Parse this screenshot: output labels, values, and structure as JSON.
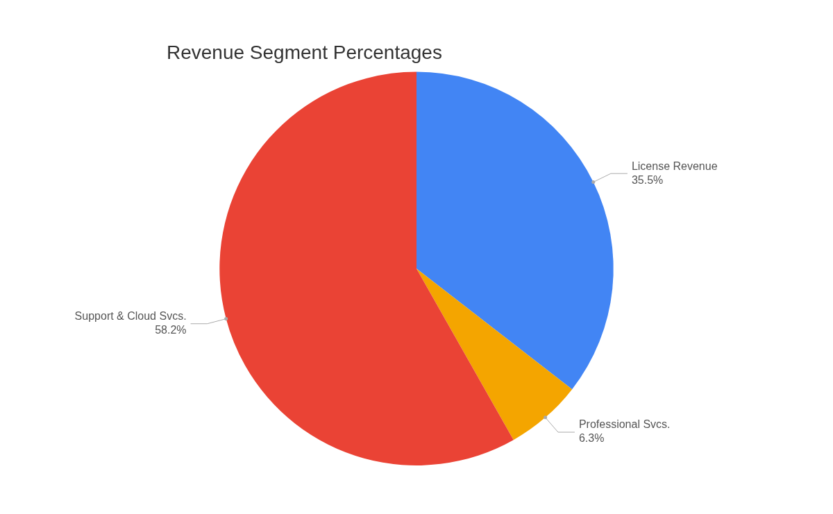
{
  "chart_data": {
    "type": "pie",
    "title": "Revenue Segment Percentages",
    "categories": [
      "License Revenue",
      "Professional Svcs.",
      "Support & Cloud Svcs."
    ],
    "values": [
      35.5,
      6.3,
      58.2
    ],
    "value_labels": [
      "35.5%",
      "6.3%",
      "58.2%"
    ],
    "colors": [
      "#4285F4",
      "#F4A500",
      "#EA4335"
    ],
    "data_labels": true
  }
}
